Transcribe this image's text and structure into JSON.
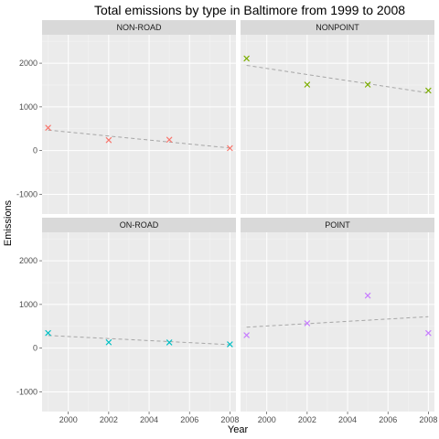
{
  "chart_data": {
    "type": "scatter",
    "title": "Total emissions by type in Baltimore from 1999 to 2008",
    "xlabel": "Year",
    "ylabel": "Emissions",
    "xlim": [
      1998.7,
      2008.3
    ],
    "ylim": [
      -1450,
      2650
    ],
    "x_ticks": [
      2000,
      2002,
      2004,
      2006,
      2008
    ],
    "y_ticks": [
      -1000,
      0,
      1000,
      2000
    ],
    "grid": true,
    "marker": "x",
    "facets": [
      {
        "name": "NON-ROAD",
        "color": "#F8766D",
        "x": [
          1999,
          2002,
          2005,
          2008
        ],
        "y": [
          522.9,
          240.8,
          248.9,
          55.8
        ],
        "trend": {
          "from": [
            1999,
            470
          ],
          "to": [
            2008,
            60
          ]
        }
      },
      {
        "name": "NONPOINT",
        "color": "#7CAE00",
        "x": [
          1999,
          2002,
          2005,
          2008
        ],
        "y": [
          2107.6,
          1509.5,
          1509.5,
          1373.2
        ],
        "trend": {
          "from": [
            1999,
            1950
          ],
          "to": [
            2008,
            1320
          ]
        }
      },
      {
        "name": "ON-ROAD",
        "color": "#00BFC4",
        "x": [
          1999,
          2002,
          2005,
          2008
        ],
        "y": [
          346.8,
          134.3,
          130.4,
          88.3
        ],
        "trend": {
          "from": [
            1999,
            290
          ],
          "to": [
            2008,
            80
          ]
        }
      },
      {
        "name": "POINT",
        "color": "#C77CFF",
        "x": [
          1999,
          2002,
          2005,
          2008
        ],
        "y": [
          296.8,
          569.3,
          1202.5,
          344.98
        ],
        "trend": {
          "from": [
            1999,
            480
          ],
          "to": [
            2008,
            720
          ]
        }
      }
    ]
  }
}
